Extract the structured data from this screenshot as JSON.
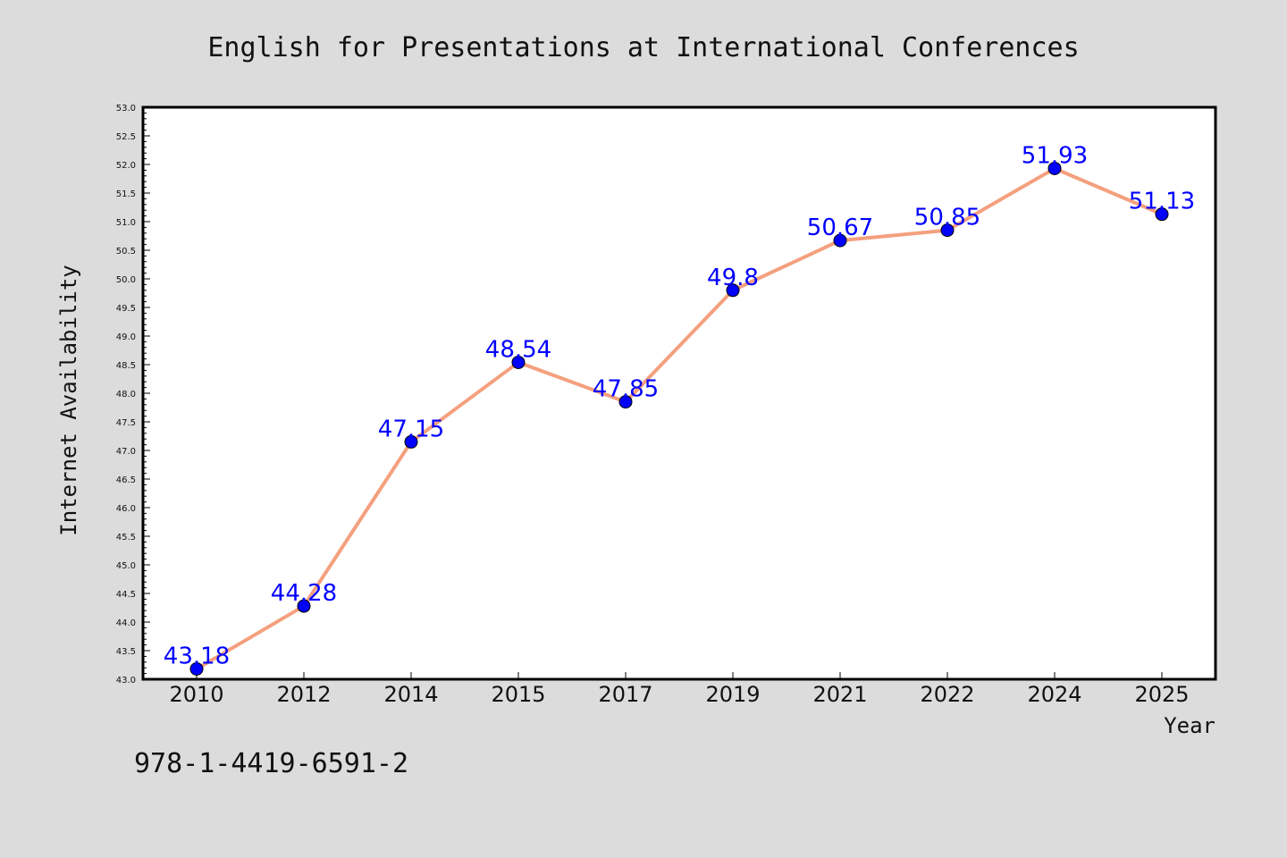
{
  "chart_data": {
    "type": "line",
    "title": "English for Presentations at International Conferences",
    "xlabel": "Year",
    "ylabel": "Internet Availability",
    "categories": [
      "2010",
      "2012",
      "2014",
      "2015",
      "2017",
      "2019",
      "2021",
      "2022",
      "2024",
      "2025"
    ],
    "values": [
      43.18,
      44.28,
      47.15,
      48.54,
      47.85,
      49.8,
      50.67,
      50.85,
      51.93,
      51.13
    ],
    "data_labels": [
      "43.18",
      "44.28",
      "47.15",
      "48.54",
      "47.85",
      "49.8",
      "50.67",
      "50.85",
      "51.93",
      "51.13"
    ],
    "ylim": [
      43.0,
      53.0
    ],
    "yticks": [
      "43.0",
      "43.5",
      "44.0",
      "44.5",
      "45.0",
      "45.5",
      "46.0",
      "46.5",
      "47.0",
      "47.5",
      "48.0",
      "48.5",
      "49.0",
      "49.5",
      "50.0",
      "50.5",
      "51.0",
      "51.5",
      "52.0",
      "52.5",
      "53.0"
    ],
    "grid": false,
    "legend": "none",
    "line_color": "#f4a07e",
    "marker_color": "#0000ff",
    "label_color": "#0000ff"
  },
  "footer_text": "978-1-4419-6591-2"
}
